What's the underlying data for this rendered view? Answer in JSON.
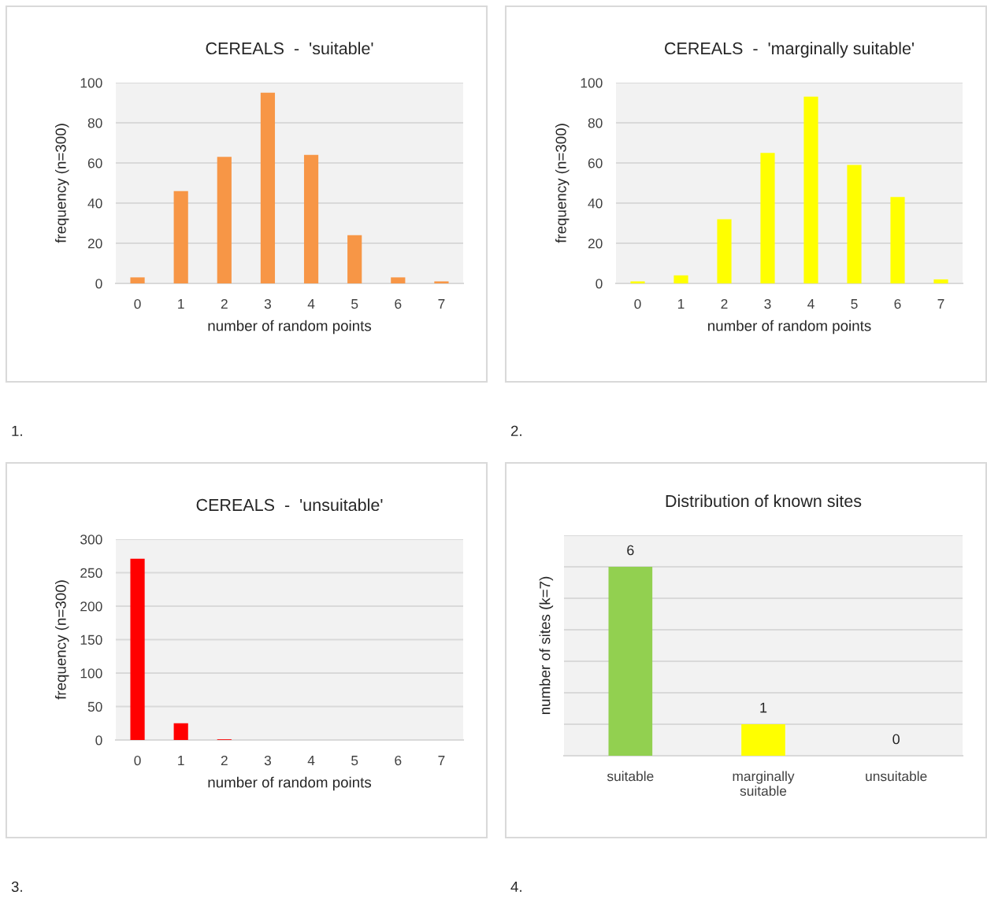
{
  "chart_data": [
    {
      "type": "bar",
      "title": "CEREALS  -  'suitable'",
      "xlabel": "number of random points",
      "ylabel": "frequency (n=300)",
      "categories": [
        "0",
        "1",
        "2",
        "3",
        "4",
        "5",
        "6",
        "7"
      ],
      "values": [
        3,
        46,
        63,
        95,
        64,
        24,
        3,
        1
      ],
      "color": "#f79646",
      "ylim": [
        0,
        100
      ],
      "yticks": [
        0,
        20,
        40,
        60,
        80,
        100
      ],
      "grid": "y",
      "annotations": [
        "1."
      ]
    },
    {
      "type": "bar",
      "title": "CEREALS  -  'marginally suitable'",
      "xlabel": "number of random points",
      "ylabel": "frequency (n=300)",
      "categories": [
        "0",
        "1",
        "2",
        "3",
        "4",
        "5",
        "6",
        "7"
      ],
      "values": [
        1,
        4,
        32,
        65,
        93,
        59,
        43,
        2
      ],
      "color": "#ffff00",
      "ylim": [
        0,
        100
      ],
      "yticks": [
        0,
        20,
        40,
        60,
        80,
        100
      ],
      "grid": "y",
      "annotations": [
        "2."
      ]
    },
    {
      "type": "bar",
      "title": "CEREALS  -  'unsuitable'",
      "xlabel": "number of random points",
      "ylabel": "frequency (n=300)",
      "categories": [
        "0",
        "1",
        "2",
        "3",
        "4",
        "5",
        "6",
        "7"
      ],
      "values": [
        271,
        25,
        1,
        0,
        0,
        0,
        0,
        0
      ],
      "color": "#ff0000",
      "ylim": [
        0,
        300
      ],
      "yticks": [
        0,
        50,
        100,
        150,
        200,
        250,
        300
      ],
      "grid": "y",
      "annotations": [
        "3."
      ]
    },
    {
      "type": "bar",
      "title": "Distribution of known sites",
      "ylabel": "number of sites (k=7)",
      "categories": [
        "suitable",
        "marginally\nsuitable",
        "unsuitable"
      ],
      "values": [
        6,
        1,
        0
      ],
      "colors": [
        "#92d050",
        "#ffff00",
        "#ffff00"
      ],
      "ylim": [
        0,
        7
      ],
      "yticks": [
        {
          "value": 0,
          "label": null
        },
        {
          "value": 1,
          "label": null
        },
        {
          "value": 2,
          "label": null
        },
        {
          "value": 3,
          "label": null
        },
        {
          "value": 4,
          "label": null
        },
        {
          "value": 5,
          "label": null
        },
        {
          "value": 6,
          "label": null
        },
        {
          "value": 7,
          "label": null
        }
      ],
      "grid": "y",
      "tick_labels": "x",
      "data_labels": true,
      "annotations": [
        "4."
      ]
    }
  ]
}
